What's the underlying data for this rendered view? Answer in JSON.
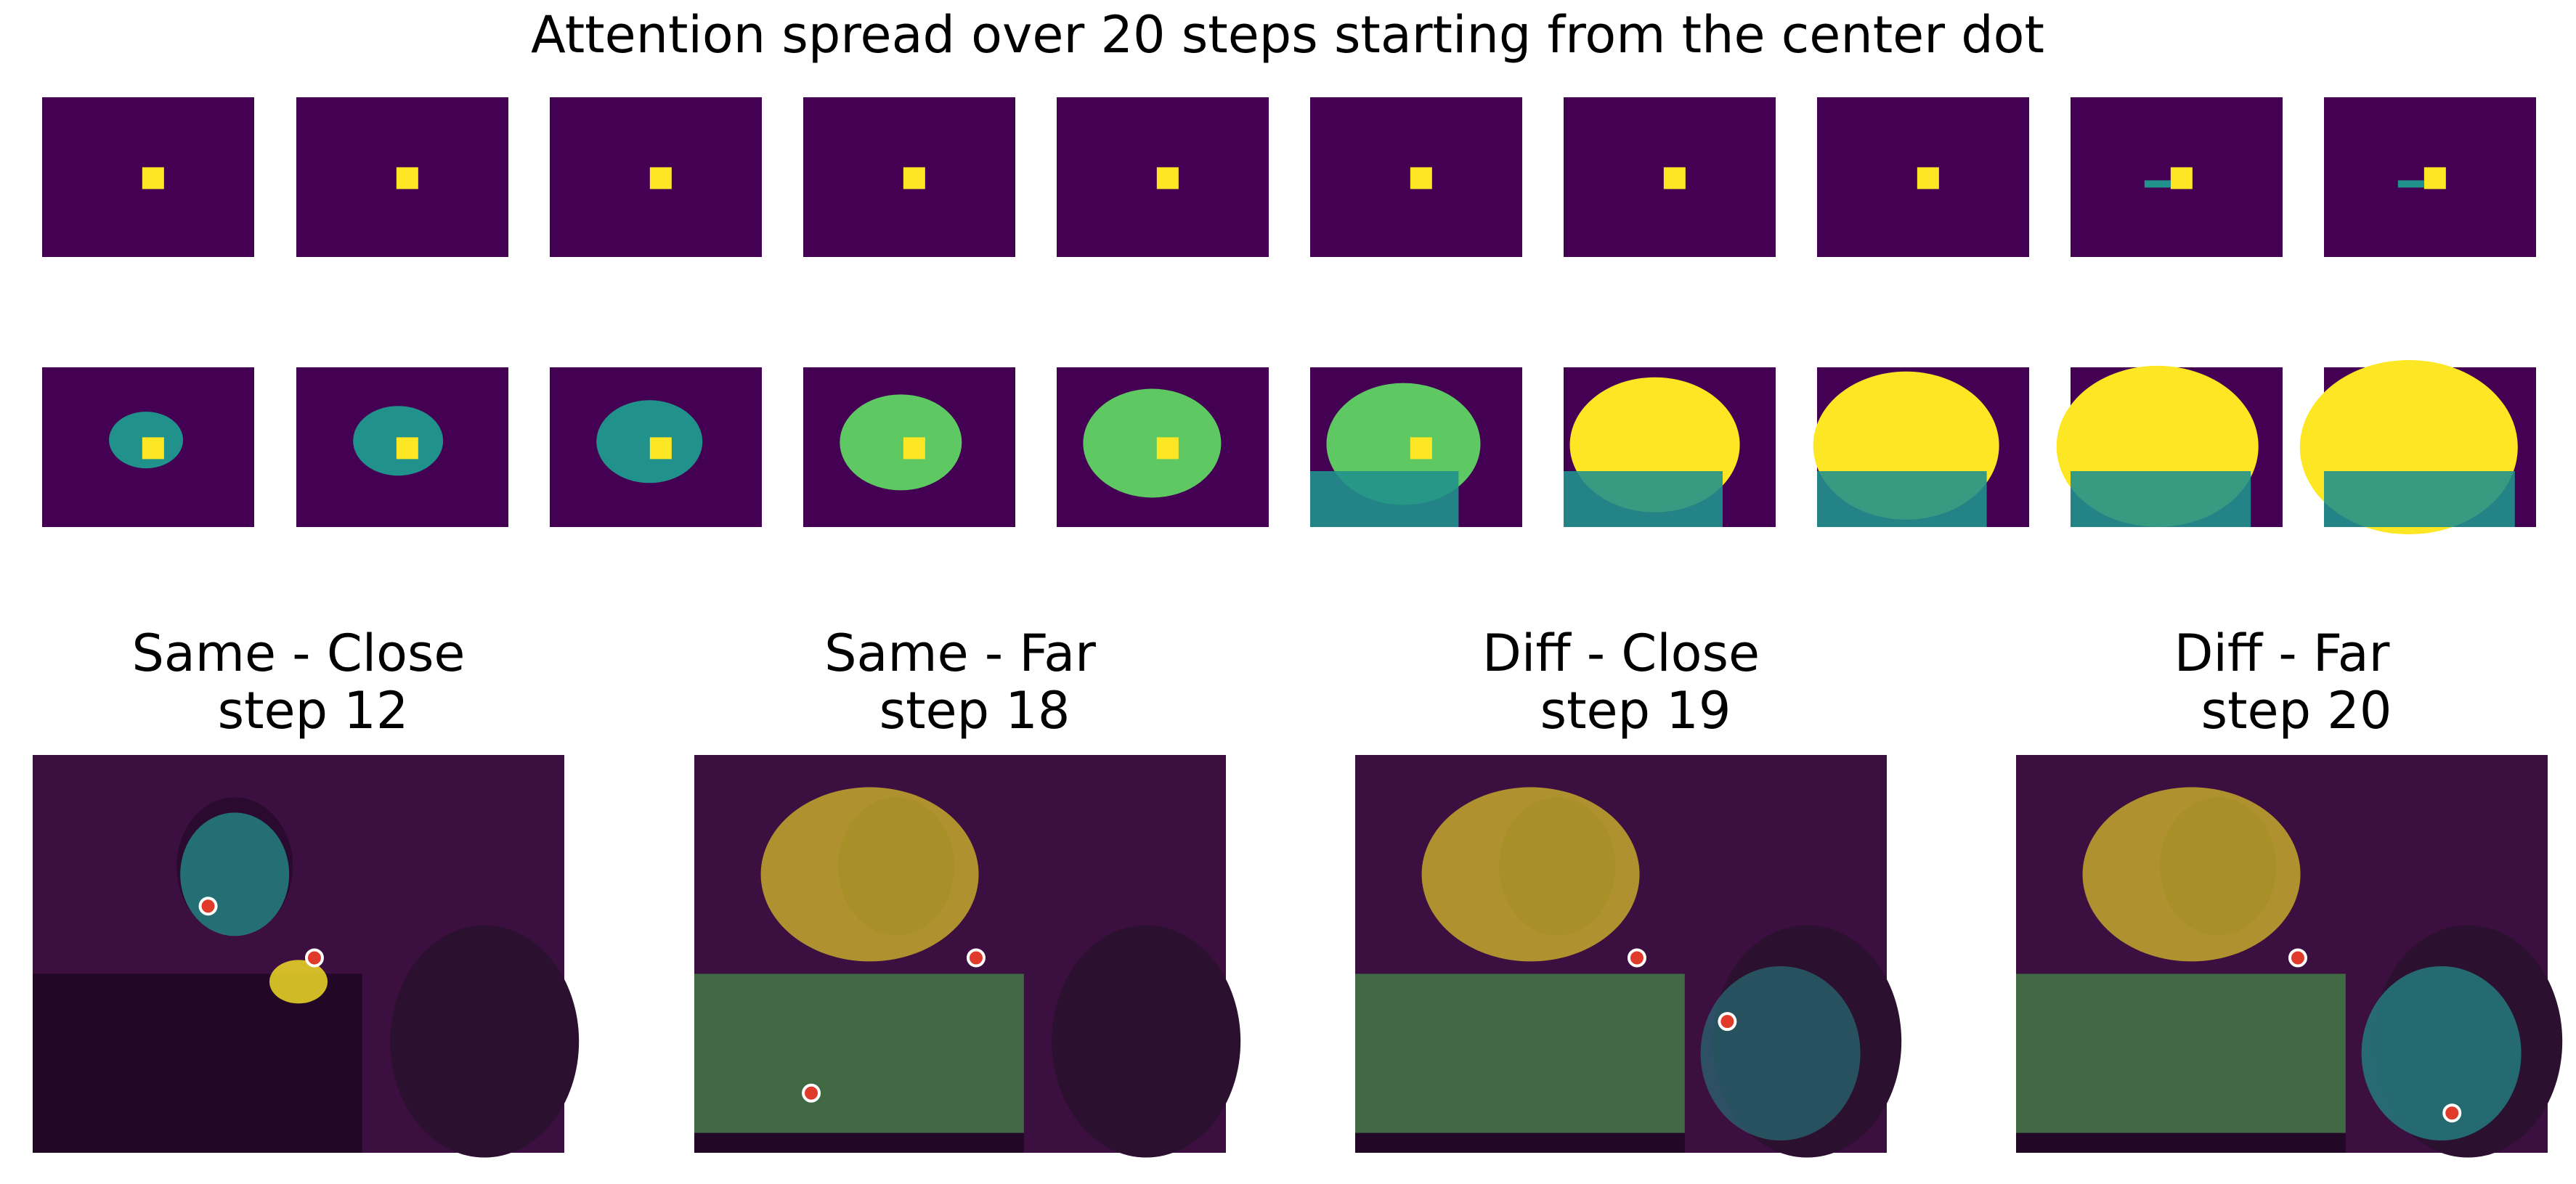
{
  "figure": {
    "title": "Attention spread over 20 steps starting from the center dot",
    "colors": {
      "background": "#ffffff",
      "viridis_dark": "#440154",
      "viridis_teal": "#21918c",
      "viridis_green": "#5ec962",
      "viridis_yellow": "#fde725",
      "photo_tint": "#3b0f3f",
      "dot_fill": "#e03a2a",
      "dot_ring": "#ffffff"
    },
    "steps": [
      {
        "step": 1
      },
      {
        "step": 2
      },
      {
        "step": 3
      },
      {
        "step": 4
      },
      {
        "step": 5
      },
      {
        "step": 6
      },
      {
        "step": 7
      },
      {
        "step": 8
      },
      {
        "step": 9
      },
      {
        "step": 10
      },
      {
        "step": 11
      },
      {
        "step": 12
      },
      {
        "step": 13
      },
      {
        "step": 14
      },
      {
        "step": 15
      },
      {
        "step": 16
      },
      {
        "step": 17
      },
      {
        "step": 18
      },
      {
        "step": 19
      },
      {
        "step": 20
      }
    ],
    "panels": [
      {
        "title": "Same - Close",
        "step_label": "step 12"
      },
      {
        "title": "Same - Far",
        "step_label": "step 18"
      },
      {
        "title": "Diff - Close",
        "step_label": "step 19"
      },
      {
        "title": "Diff - Far",
        "step_label": "step 20"
      }
    ]
  }
}
